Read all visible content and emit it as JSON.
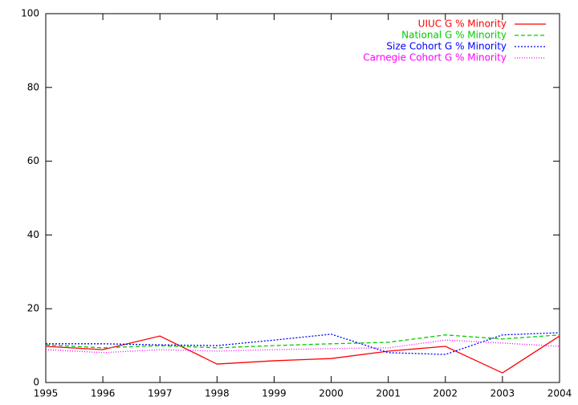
{
  "chart_data": {
    "type": "line",
    "x": [
      1995,
      1996,
      1997,
      1998,
      1999,
      2000,
      2001,
      2002,
      2003,
      2004
    ],
    "series": [
      {
        "name": "UIUC G % Minority",
        "color": "#ff0000",
        "dash": "solid",
        "values": [
          9.8,
          8.9,
          12.6,
          5.0,
          5.9,
          6.5,
          8.5,
          9.8,
          2.6,
          12.6
        ]
      },
      {
        "name": "National G % Minority",
        "color": "#00cc00",
        "dash": "dashed",
        "values": [
          10.2,
          9.4,
          10.0,
          9.4,
          10.0,
          10.5,
          10.9,
          12.9,
          11.8,
          12.9
        ]
      },
      {
        "name": "Size Cohort G % Minority",
        "color": "#0000ff",
        "dash": "dotted",
        "values": [
          10.5,
          10.5,
          10.2,
          10.0,
          11.5,
          13.1,
          8.1,
          7.6,
          12.9,
          13.5
        ]
      },
      {
        "name": "Carnegie Cohort G % Minority",
        "color": "#ff00ff",
        "dash": "fine",
        "values": [
          8.9,
          8.1,
          8.9,
          8.5,
          8.9,
          9.2,
          9.4,
          11.5,
          10.7,
          9.8
        ]
      }
    ],
    "xlim": [
      1995,
      2004
    ],
    "xticks": [
      1995,
      1996,
      1997,
      1998,
      1999,
      2000,
      2001,
      2002,
      2003,
      2004
    ],
    "ylim": [
      0,
      100
    ],
    "yticks": [
      0,
      20,
      40,
      60,
      80,
      100
    ],
    "grid": false,
    "legend": "top-right"
  }
}
